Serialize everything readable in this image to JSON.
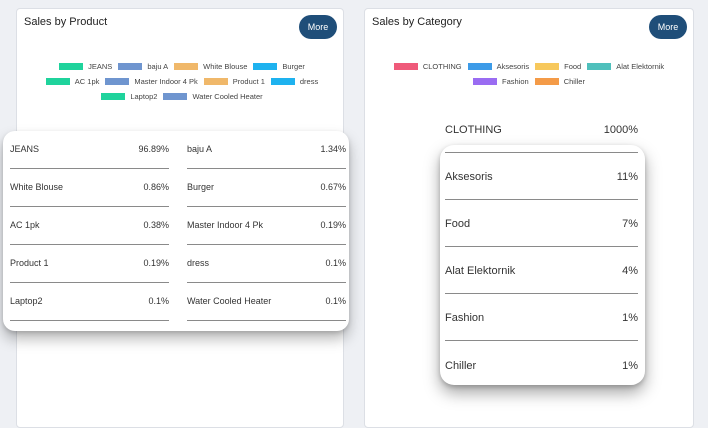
{
  "product_card": {
    "title": "Sales by Product",
    "more_label": "More",
    "legend": [
      {
        "label": "JEANS",
        "color": "#1fd39c"
      },
      {
        "label": "baju A",
        "color": "#6f95cf"
      },
      {
        "label": "White Blouse",
        "color": "#f0b86a"
      },
      {
        "label": "Burger",
        "color": "#1eb2ef"
      },
      {
        "label": "AC 1pk",
        "color": "#1fd39c"
      },
      {
        "label": "Master Indoor 4 Pk",
        "color": "#6f95cf"
      },
      {
        "label": "Product 1",
        "color": "#f0b86a"
      },
      {
        "label": "dress",
        "color": "#1eb2ef"
      },
      {
        "label": "Laptop2",
        "color": "#1fd39c"
      },
      {
        "label": "Water Cooled Heater",
        "color": "#6f95cf"
      }
    ],
    "rows_left": [
      {
        "name": "JEANS",
        "value": "96.89%"
      },
      {
        "name": "White Blouse",
        "value": "0.86%"
      },
      {
        "name": "AC 1pk",
        "value": "0.38%"
      },
      {
        "name": "Product 1",
        "value": "0.19%"
      },
      {
        "name": "Laptop2",
        "value": "0.1%"
      }
    ],
    "rows_right": [
      {
        "name": "baju A",
        "value": "1.34%"
      },
      {
        "name": "Burger",
        "value": "0.67%"
      },
      {
        "name": "Master Indoor 4 Pk",
        "value": "0.19%"
      },
      {
        "name": "dress",
        "value": "0.1%"
      },
      {
        "name": "Water Cooled Heater",
        "value": "0.1%"
      }
    ]
  },
  "category_card": {
    "title": "Sales by Category",
    "more_label": "More",
    "legend": [
      {
        "label": "CLOTHING",
        "color": "#ef5a7a"
      },
      {
        "label": "Aksesoris",
        "color": "#3c9be8"
      },
      {
        "label": "Food",
        "color": "#f7c85c"
      },
      {
        "label": "Alat Elektornik",
        "color": "#4fc0bc"
      },
      {
        "label": "Fashion",
        "color": "#9a6cf2"
      },
      {
        "label": "Chiller",
        "color": "#f49b48"
      }
    ],
    "rows": [
      {
        "name": "CLOTHING",
        "value": "1000%"
      },
      {
        "name": "Aksesoris",
        "value": "11%"
      },
      {
        "name": "Food",
        "value": "7%"
      },
      {
        "name": "Alat Elektornik",
        "value": "4%"
      },
      {
        "name": "Fashion",
        "value": "1%"
      },
      {
        "name": "Chiller",
        "value": "1%"
      }
    ]
  }
}
